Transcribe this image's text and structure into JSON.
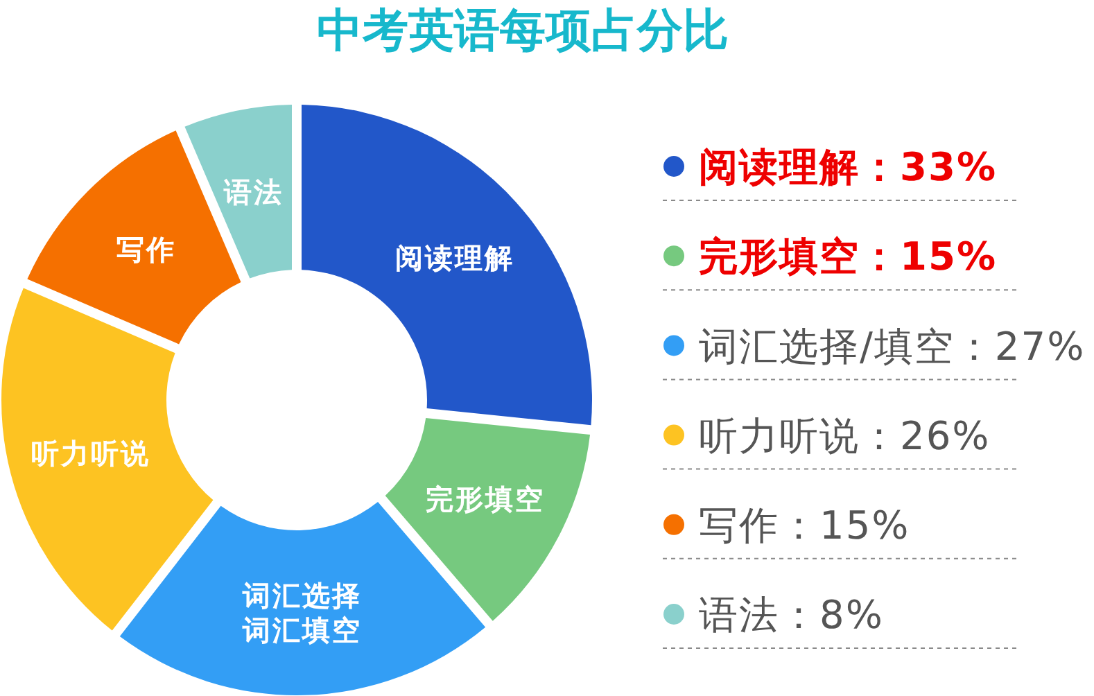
{
  "chart_data": {
    "type": "donut",
    "title": "中考英语每项占分比",
    "categories": [
      "阅读理解：33%",
      "完形填空：15%",
      "词汇选择/填空：27%",
      "听力听说：26%",
      "写作：15%",
      "语法：8%"
    ],
    "values": [
      33,
      15,
      27,
      26,
      15,
      8
    ],
    "colors": [
      "#2257c9",
      "#76c97f",
      "#339ef5",
      "#fdc322",
      "#f57000",
      "#8ad0cc"
    ],
    "value_labels": [
      "阅读理解",
      "完形填空",
      "词汇选择词汇填空",
      "听力听说",
      "写作",
      "语法"
    ],
    "legend": "right"
  }
}
